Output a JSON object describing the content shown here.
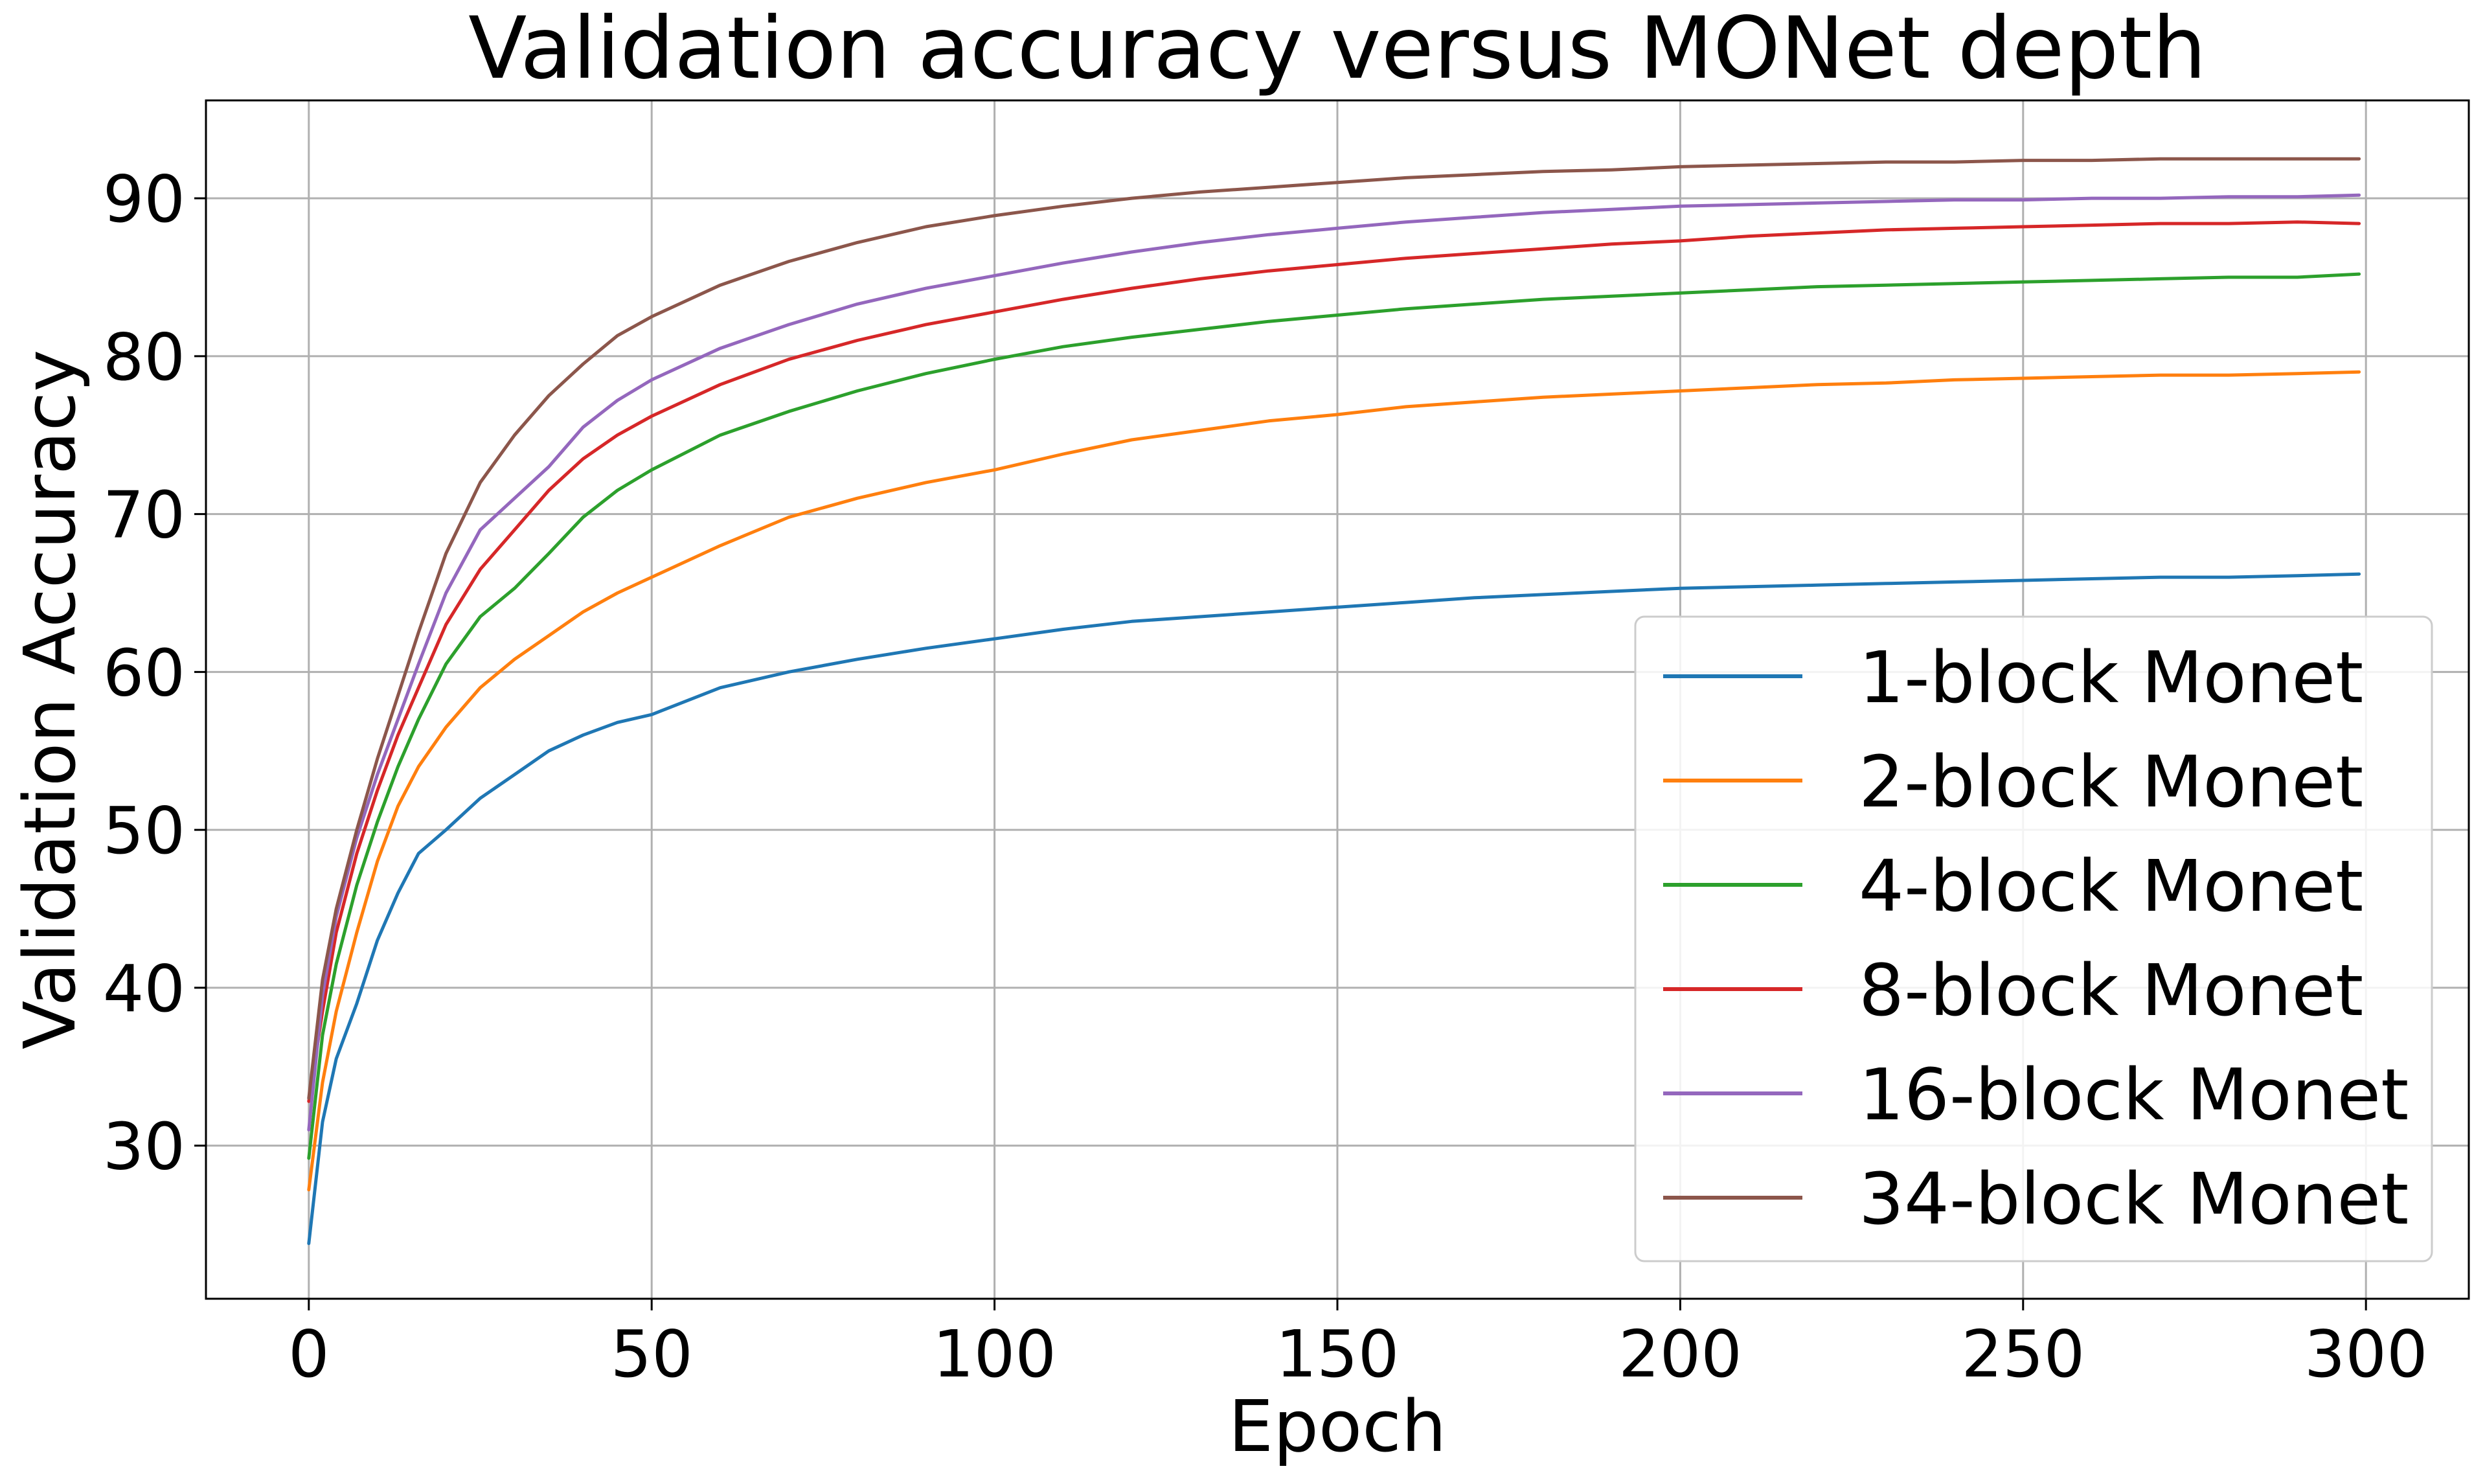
{
  "chart_data": {
    "type": "line",
    "title": "Validation accuracy versus MONet depth",
    "xlabel": "Epoch",
    "ylabel": "Validation Accuracy",
    "xlim": [
      -15,
      315
    ],
    "ylim": [
      20.3,
      96.2
    ],
    "xticks": [
      0,
      50,
      100,
      150,
      200,
      250,
      300
    ],
    "yticks": [
      30,
      40,
      50,
      60,
      70,
      80,
      90
    ],
    "grid": true,
    "legend_position": "lower-right",
    "x": [
      0,
      2,
      4,
      7,
      10,
      13,
      16,
      20,
      25,
      30,
      35,
      40,
      45,
      50,
      60,
      70,
      80,
      90,
      100,
      110,
      120,
      130,
      140,
      150,
      160,
      170,
      180,
      190,
      200,
      210,
      220,
      230,
      240,
      250,
      260,
      270,
      280,
      290,
      299
    ],
    "series": [
      {
        "name": "1-block Monet",
        "color": "#1f77b4",
        "values": [
          23.8,
          31.5,
          35.5,
          39.0,
          43.0,
          46.0,
          48.5,
          50.0,
          52.0,
          53.5,
          55.0,
          56.0,
          56.8,
          57.3,
          59.0,
          60.0,
          60.8,
          61.5,
          62.1,
          62.7,
          63.2,
          63.5,
          63.8,
          64.1,
          64.4,
          64.7,
          64.9,
          65.1,
          65.3,
          65.4,
          65.5,
          65.6,
          65.7,
          65.8,
          65.9,
          66.0,
          66.0,
          66.1,
          66.2
        ]
      },
      {
        "name": "2-block Monet",
        "color": "#ff7f0e",
        "values": [
          27.2,
          34.0,
          38.5,
          43.5,
          48.0,
          51.5,
          54.0,
          56.5,
          59.0,
          60.8,
          62.3,
          63.8,
          65.0,
          66.0,
          68.0,
          69.8,
          71.0,
          72.0,
          72.8,
          73.8,
          74.7,
          75.3,
          75.9,
          76.3,
          76.8,
          77.1,
          77.4,
          77.6,
          77.8,
          78.0,
          78.2,
          78.3,
          78.5,
          78.6,
          78.7,
          78.8,
          78.8,
          78.9,
          79.0
        ]
      },
      {
        "name": "4-block Monet",
        "color": "#2ca02c",
        "values": [
          29.2,
          37.0,
          41.5,
          46.5,
          50.5,
          54.0,
          57.0,
          60.5,
          63.5,
          65.3,
          67.5,
          69.8,
          71.5,
          72.8,
          75.0,
          76.5,
          77.8,
          78.9,
          79.8,
          80.6,
          81.2,
          81.7,
          82.2,
          82.6,
          83.0,
          83.3,
          83.6,
          83.8,
          84.0,
          84.2,
          84.4,
          84.5,
          84.6,
          84.7,
          84.8,
          84.9,
          85.0,
          85.0,
          85.2
        ]
      },
      {
        "name": "8-block Monet",
        "color": "#d62728",
        "values": [
          32.8,
          38.5,
          43.5,
          48.5,
          52.5,
          56.0,
          59.0,
          63.0,
          66.5,
          69.0,
          71.5,
          73.5,
          75.0,
          76.2,
          78.2,
          79.8,
          81.0,
          82.0,
          82.8,
          83.6,
          84.3,
          84.9,
          85.4,
          85.8,
          86.2,
          86.5,
          86.8,
          87.1,
          87.3,
          87.6,
          87.8,
          88.0,
          88.1,
          88.2,
          88.3,
          88.4,
          88.4,
          88.5,
          88.4
        ]
      },
      {
        "name": "16-block Monet",
        "color": "#9467bd",
        "values": [
          31.0,
          39.5,
          44.5,
          49.5,
          53.5,
          57.0,
          60.5,
          65.0,
          69.0,
          71.0,
          73.0,
          75.5,
          77.2,
          78.5,
          80.5,
          82.0,
          83.3,
          84.3,
          85.1,
          85.9,
          86.6,
          87.2,
          87.7,
          88.1,
          88.5,
          88.8,
          89.1,
          89.3,
          89.5,
          89.6,
          89.7,
          89.8,
          89.9,
          89.9,
          90.0,
          90.0,
          90.1,
          90.1,
          90.2
        ]
      },
      {
        "name": "34-block Monet",
        "color": "#8c564b",
        "values": [
          33.0,
          40.5,
          45.0,
          50.0,
          54.5,
          58.5,
          62.5,
          67.5,
          72.0,
          75.0,
          77.5,
          79.5,
          81.3,
          82.5,
          84.5,
          86.0,
          87.2,
          88.2,
          88.9,
          89.5,
          90.0,
          90.4,
          90.7,
          91.0,
          91.3,
          91.5,
          91.7,
          91.8,
          92.0,
          92.1,
          92.2,
          92.3,
          92.3,
          92.4,
          92.4,
          92.5,
          92.5,
          92.5,
          92.5
        ]
      }
    ]
  }
}
